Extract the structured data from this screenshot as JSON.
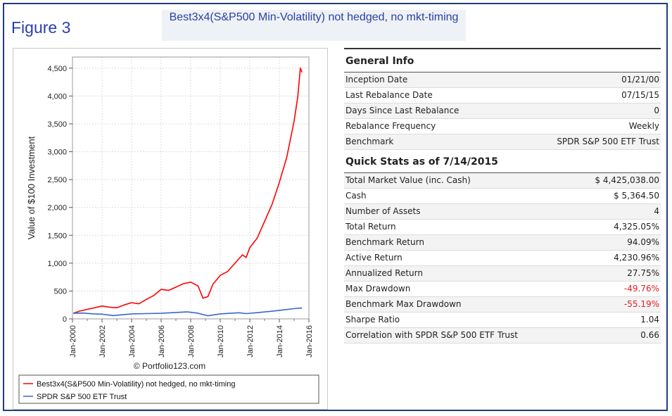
{
  "figure_label": "Figure 3",
  "figure_title": "Best3x4(S&P500 Min-Volatility) not hedged, no mkt-timing",
  "chart_data": {
    "type": "line",
    "ylabel": "Value of $100 Investment",
    "yticks": [
      "0",
      "500",
      "1,000",
      "1,500",
      "2,000",
      "2,500",
      "3,000",
      "3,500",
      "4,000",
      "4,500"
    ],
    "ylim": [
      0,
      4700
    ],
    "xticks": [
      "Jan-2000",
      "Jan-2002",
      "Jan-2004",
      "Jan-2006",
      "Jan-2008",
      "Jan-2010",
      "Jan-2012",
      "Jan-2014",
      "Jan-2016"
    ],
    "xlim": [
      "2000-01",
      "2016-01"
    ],
    "grid": true,
    "watermark": "© Portfolio123.com",
    "series": [
      {
        "name": "Best3x4(S&P500 Min-Volatility) not hedged, no mkt-timing",
        "color": "#ff0000",
        "points": [
          [
            "2000-01-21",
            100
          ],
          [
            "2000-07",
            140
          ],
          [
            "2001-01",
            170
          ],
          [
            "2001-07",
            200
          ],
          [
            "2002-01",
            230
          ],
          [
            "2002-07",
            210
          ],
          [
            "2003-01",
            200
          ],
          [
            "2003-07",
            250
          ],
          [
            "2004-01",
            290
          ],
          [
            "2004-07",
            270
          ],
          [
            "2005-01",
            350
          ],
          [
            "2005-07",
            420
          ],
          [
            "2006-01",
            530
          ],
          [
            "2006-07",
            510
          ],
          [
            "2007-01",
            570
          ],
          [
            "2007-07",
            630
          ],
          [
            "2008-01",
            660
          ],
          [
            "2008-07",
            590
          ],
          [
            "2008-11",
            370
          ],
          [
            "2009-03",
            400
          ],
          [
            "2009-07",
            620
          ],
          [
            "2010-01",
            780
          ],
          [
            "2010-07",
            850
          ],
          [
            "2011-01",
            1000
          ],
          [
            "2011-07",
            1150
          ],
          [
            "2011-10",
            1100
          ],
          [
            "2012-01",
            1280
          ],
          [
            "2012-07",
            1450
          ],
          [
            "2013-01",
            1750
          ],
          [
            "2013-07",
            2050
          ],
          [
            "2014-01",
            2450
          ],
          [
            "2014-07",
            2900
          ],
          [
            "2015-01",
            3550
          ],
          [
            "2015-04",
            4000
          ],
          [
            "2015-06",
            4500
          ],
          [
            "2015-07-14",
            4425
          ]
        ]
      },
      {
        "name": "SPDR S&P 500 ETF Trust",
        "color": "#3a66cc",
        "points": [
          [
            "2000-01-21",
            100
          ],
          [
            "2000-09",
            105
          ],
          [
            "2001-06",
            90
          ],
          [
            "2002-01",
            85
          ],
          [
            "2002-10",
            60
          ],
          [
            "2003-06",
            75
          ],
          [
            "2004-01",
            90
          ],
          [
            "2005-01",
            95
          ],
          [
            "2006-01",
            100
          ],
          [
            "2007-01",
            115
          ],
          [
            "2007-10",
            125
          ],
          [
            "2008-06",
            105
          ],
          [
            "2009-03",
            55
          ],
          [
            "2010-01",
            90
          ],
          [
            "2011-04",
            110
          ],
          [
            "2011-10",
            95
          ],
          [
            "2012-06",
            110
          ],
          [
            "2013-06",
            135
          ],
          [
            "2014-06",
            165
          ],
          [
            "2015-03",
            190
          ],
          [
            "2015-07-14",
            194
          ]
        ]
      }
    ]
  },
  "legend": {
    "items": [
      "Best3x4(S&P500 Min-Volatility) not hedged, no mkt-timing",
      "SPDR S&P 500 ETF Trust"
    ]
  },
  "general_info": {
    "heading": "General Info",
    "rows": [
      {
        "label": "Inception Date",
        "value": "01/21/00"
      },
      {
        "label": "Last Rebalance Date",
        "value": "07/15/15"
      },
      {
        "label": "Days Since Last Rebalance",
        "value": "0"
      },
      {
        "label": "Rebalance Frequency",
        "value": "Weekly"
      },
      {
        "label": "Benchmark",
        "value": "SPDR S&P 500 ETF Trust"
      }
    ]
  },
  "quick_stats": {
    "heading": "Quick Stats as of 7/14/2015",
    "rows": [
      {
        "label": "Total Market Value (inc. Cash)",
        "value": "$ 4,425,038.00"
      },
      {
        "label": "Cash",
        "value": "$ 5,364.50"
      },
      {
        "label": "Number of Assets",
        "value": "4"
      },
      {
        "label": "Total Return",
        "value": "4,325.05%"
      },
      {
        "label": "Benchmark Return",
        "value": "94.09%"
      },
      {
        "label": "Active Return",
        "value": "4,230.96%"
      },
      {
        "label": "Annualized Return",
        "value": "27.75%"
      },
      {
        "label": "Max Drawdown",
        "value": "-49.76%"
      },
      {
        "label": "Benchmark Max Drawdown",
        "value": "-55.19%"
      },
      {
        "label": "Sharpe Ratio",
        "value": "1.04"
      },
      {
        "label": "Correlation with SPDR S&P 500 ETF Trust",
        "value": "0.66"
      }
    ]
  }
}
